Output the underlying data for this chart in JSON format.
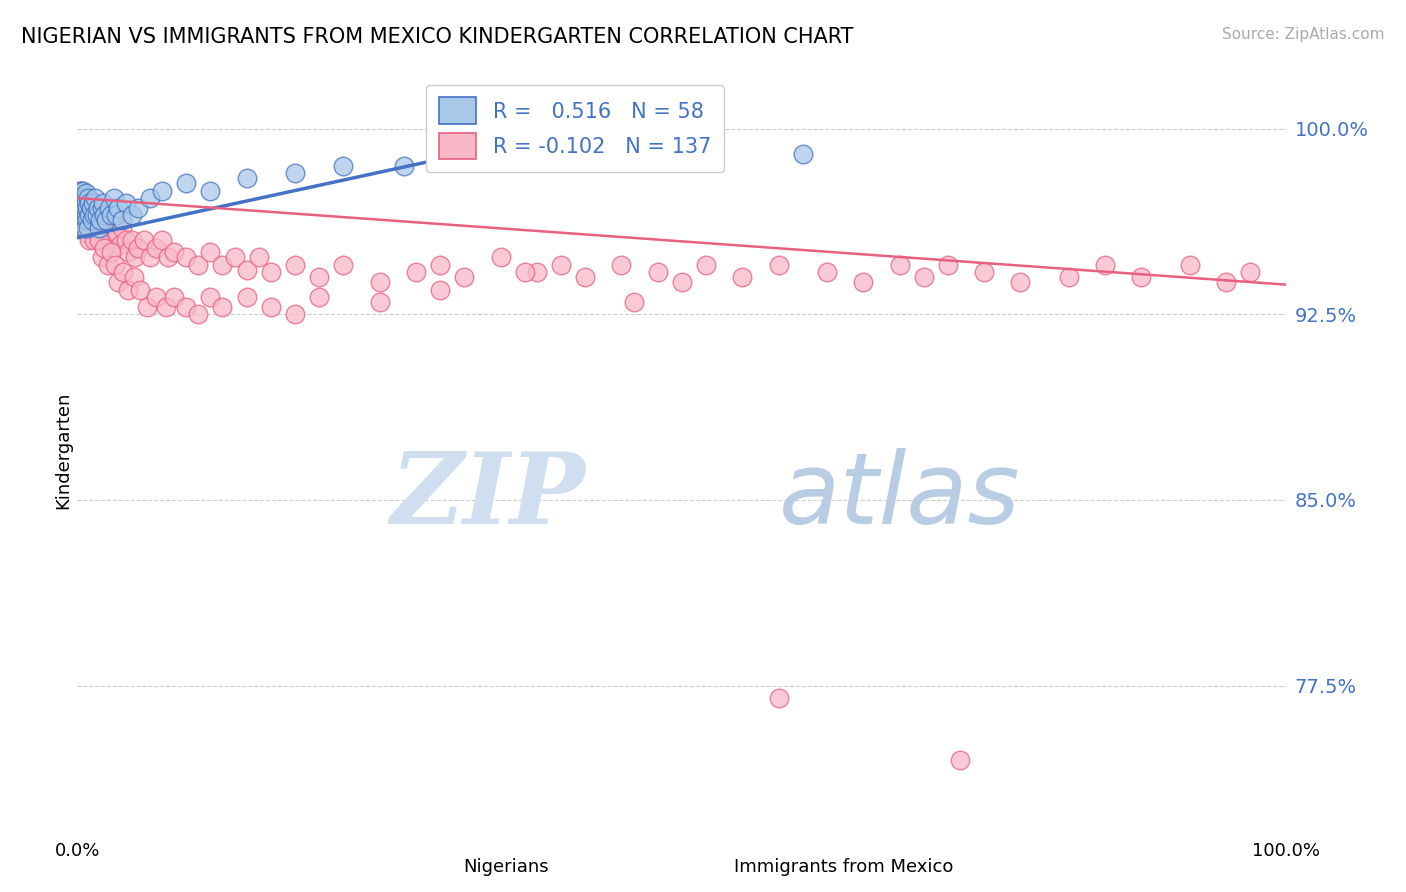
{
  "title": "NIGERIAN VS IMMIGRANTS FROM MEXICO KINDERGARTEN CORRELATION CHART",
  "source": "Source: ZipAtlas.com",
  "ylabel": "Kindergarten",
  "ytick_labels": [
    "100.0%",
    "92.5%",
    "85.0%",
    "77.5%"
  ],
  "ytick_values": [
    1.0,
    0.925,
    0.85,
    0.775
  ],
  "xlim": [
    0.0,
    1.0
  ],
  "ylim": [
    0.715,
    1.025
  ],
  "blue_color": "#a8c8e8",
  "pink_color": "#f8b8c8",
  "blue_line_color": "#4472c4",
  "pink_line_color": "#e86080",
  "r_blue": 0.516,
  "n_blue": 58,
  "r_pink": -0.102,
  "n_pink": 137,
  "tick_color": "#4472c4",
  "watermark_zip": "ZIP",
  "watermark_atlas": "atlas",
  "watermark_color": "#d0dff0",
  "blue_trend_x": [
    0.0,
    0.35
  ],
  "blue_trend_y": [
    0.956,
    0.993
  ],
  "pink_trend_x": [
    0.0,
    1.0
  ],
  "pink_trend_y": [
    0.972,
    0.937
  ],
  "blue_x": [
    0.001,
    0.002,
    0.002,
    0.003,
    0.003,
    0.003,
    0.004,
    0.004,
    0.004,
    0.005,
    0.005,
    0.005,
    0.005,
    0.006,
    0.006,
    0.006,
    0.007,
    0.007,
    0.007,
    0.008,
    0.008,
    0.009,
    0.009,
    0.01,
    0.01,
    0.011,
    0.012,
    0.013,
    0.014,
    0.015,
    0.016,
    0.017,
    0.018,
    0.019,
    0.02,
    0.021,
    0.022,
    0.024,
    0.026,
    0.028,
    0.03,
    0.032,
    0.034,
    0.037,
    0.04,
    0.045,
    0.05,
    0.06,
    0.07,
    0.09,
    0.11,
    0.14,
    0.18,
    0.22,
    0.27,
    0.32,
    0.38,
    0.6
  ],
  "blue_y": [
    0.965,
    0.972,
    0.968,
    0.975,
    0.97,
    0.966,
    0.973,
    0.967,
    0.971,
    0.965,
    0.969,
    0.963,
    0.975,
    0.968,
    0.972,
    0.96,
    0.965,
    0.97,
    0.974,
    0.963,
    0.968,
    0.972,
    0.96,
    0.965,
    0.97,
    0.968,
    0.963,
    0.97,
    0.965,
    0.972,
    0.965,
    0.968,
    0.96,
    0.963,
    0.968,
    0.97,
    0.965,
    0.963,
    0.968,
    0.965,
    0.972,
    0.965,
    0.968,
    0.963,
    0.97,
    0.965,
    0.968,
    0.972,
    0.975,
    0.978,
    0.975,
    0.98,
    0.982,
    0.985,
    0.985,
    0.988,
    0.99,
    0.99
  ],
  "pink_x": [
    0.001,
    0.002,
    0.002,
    0.003,
    0.003,
    0.003,
    0.004,
    0.004,
    0.005,
    0.005,
    0.005,
    0.006,
    0.006,
    0.007,
    0.007,
    0.007,
    0.008,
    0.008,
    0.009,
    0.009,
    0.01,
    0.01,
    0.011,
    0.012,
    0.012,
    0.013,
    0.014,
    0.015,
    0.015,
    0.016,
    0.017,
    0.018,
    0.019,
    0.02,
    0.021,
    0.022,
    0.023,
    0.024,
    0.025,
    0.026,
    0.028,
    0.03,
    0.031,
    0.033,
    0.035,
    0.037,
    0.04,
    0.042,
    0.045,
    0.048,
    0.05,
    0.055,
    0.06,
    0.065,
    0.07,
    0.075,
    0.08,
    0.09,
    0.1,
    0.11,
    0.12,
    0.13,
    0.14,
    0.15,
    0.16,
    0.18,
    0.2,
    0.22,
    0.25,
    0.28,
    0.3,
    0.32,
    0.35,
    0.38,
    0.4,
    0.42,
    0.45,
    0.48,
    0.5,
    0.52,
    0.55,
    0.58,
    0.62,
    0.65,
    0.68,
    0.7,
    0.72,
    0.75,
    0.78,
    0.82,
    0.85,
    0.88,
    0.92,
    0.95,
    0.97,
    0.002,
    0.003,
    0.004,
    0.005,
    0.006,
    0.007,
    0.008,
    0.009,
    0.01,
    0.011,
    0.012,
    0.014,
    0.016,
    0.018,
    0.02,
    0.022,
    0.025,
    0.028,
    0.031,
    0.034,
    0.038,
    0.042,
    0.047,
    0.052,
    0.058,
    0.065,
    0.073,
    0.08,
    0.09,
    0.1,
    0.11,
    0.12,
    0.14,
    0.16,
    0.18,
    0.2,
    0.25,
    0.3,
    0.37,
    0.46,
    0.58,
    0.73
  ],
  "pink_y": [
    0.975,
    0.972,
    0.968,
    0.975,
    0.968,
    0.972,
    0.965,
    0.97,
    0.968,
    0.972,
    0.96,
    0.965,
    0.97,
    0.963,
    0.968,
    0.972,
    0.96,
    0.968,
    0.963,
    0.97,
    0.965,
    0.972,
    0.96,
    0.965,
    0.97,
    0.963,
    0.968,
    0.96,
    0.965,
    0.958,
    0.963,
    0.955,
    0.96,
    0.963,
    0.955,
    0.96,
    0.955,
    0.963,
    0.958,
    0.955,
    0.96,
    0.955,
    0.963,
    0.958,
    0.953,
    0.96,
    0.955,
    0.95,
    0.955,
    0.948,
    0.952,
    0.955,
    0.948,
    0.952,
    0.955,
    0.948,
    0.95,
    0.948,
    0.945,
    0.95,
    0.945,
    0.948,
    0.943,
    0.948,
    0.942,
    0.945,
    0.94,
    0.945,
    0.938,
    0.942,
    0.945,
    0.94,
    0.948,
    0.942,
    0.945,
    0.94,
    0.945,
    0.942,
    0.938,
    0.945,
    0.94,
    0.945,
    0.942,
    0.938,
    0.945,
    0.94,
    0.945,
    0.942,
    0.938,
    0.94,
    0.945,
    0.94,
    0.945,
    0.938,
    0.942,
    0.972,
    0.968,
    0.965,
    0.97,
    0.96,
    0.965,
    0.958,
    0.963,
    0.955,
    0.96,
    0.963,
    0.955,
    0.96,
    0.955,
    0.948,
    0.952,
    0.945,
    0.95,
    0.945,
    0.938,
    0.942,
    0.935,
    0.94,
    0.935,
    0.928,
    0.932,
    0.928,
    0.932,
    0.928,
    0.925,
    0.932,
    0.928,
    0.932,
    0.928,
    0.925,
    0.932,
    0.93,
    0.935,
    0.942,
    0.93,
    0.77,
    0.745
  ]
}
